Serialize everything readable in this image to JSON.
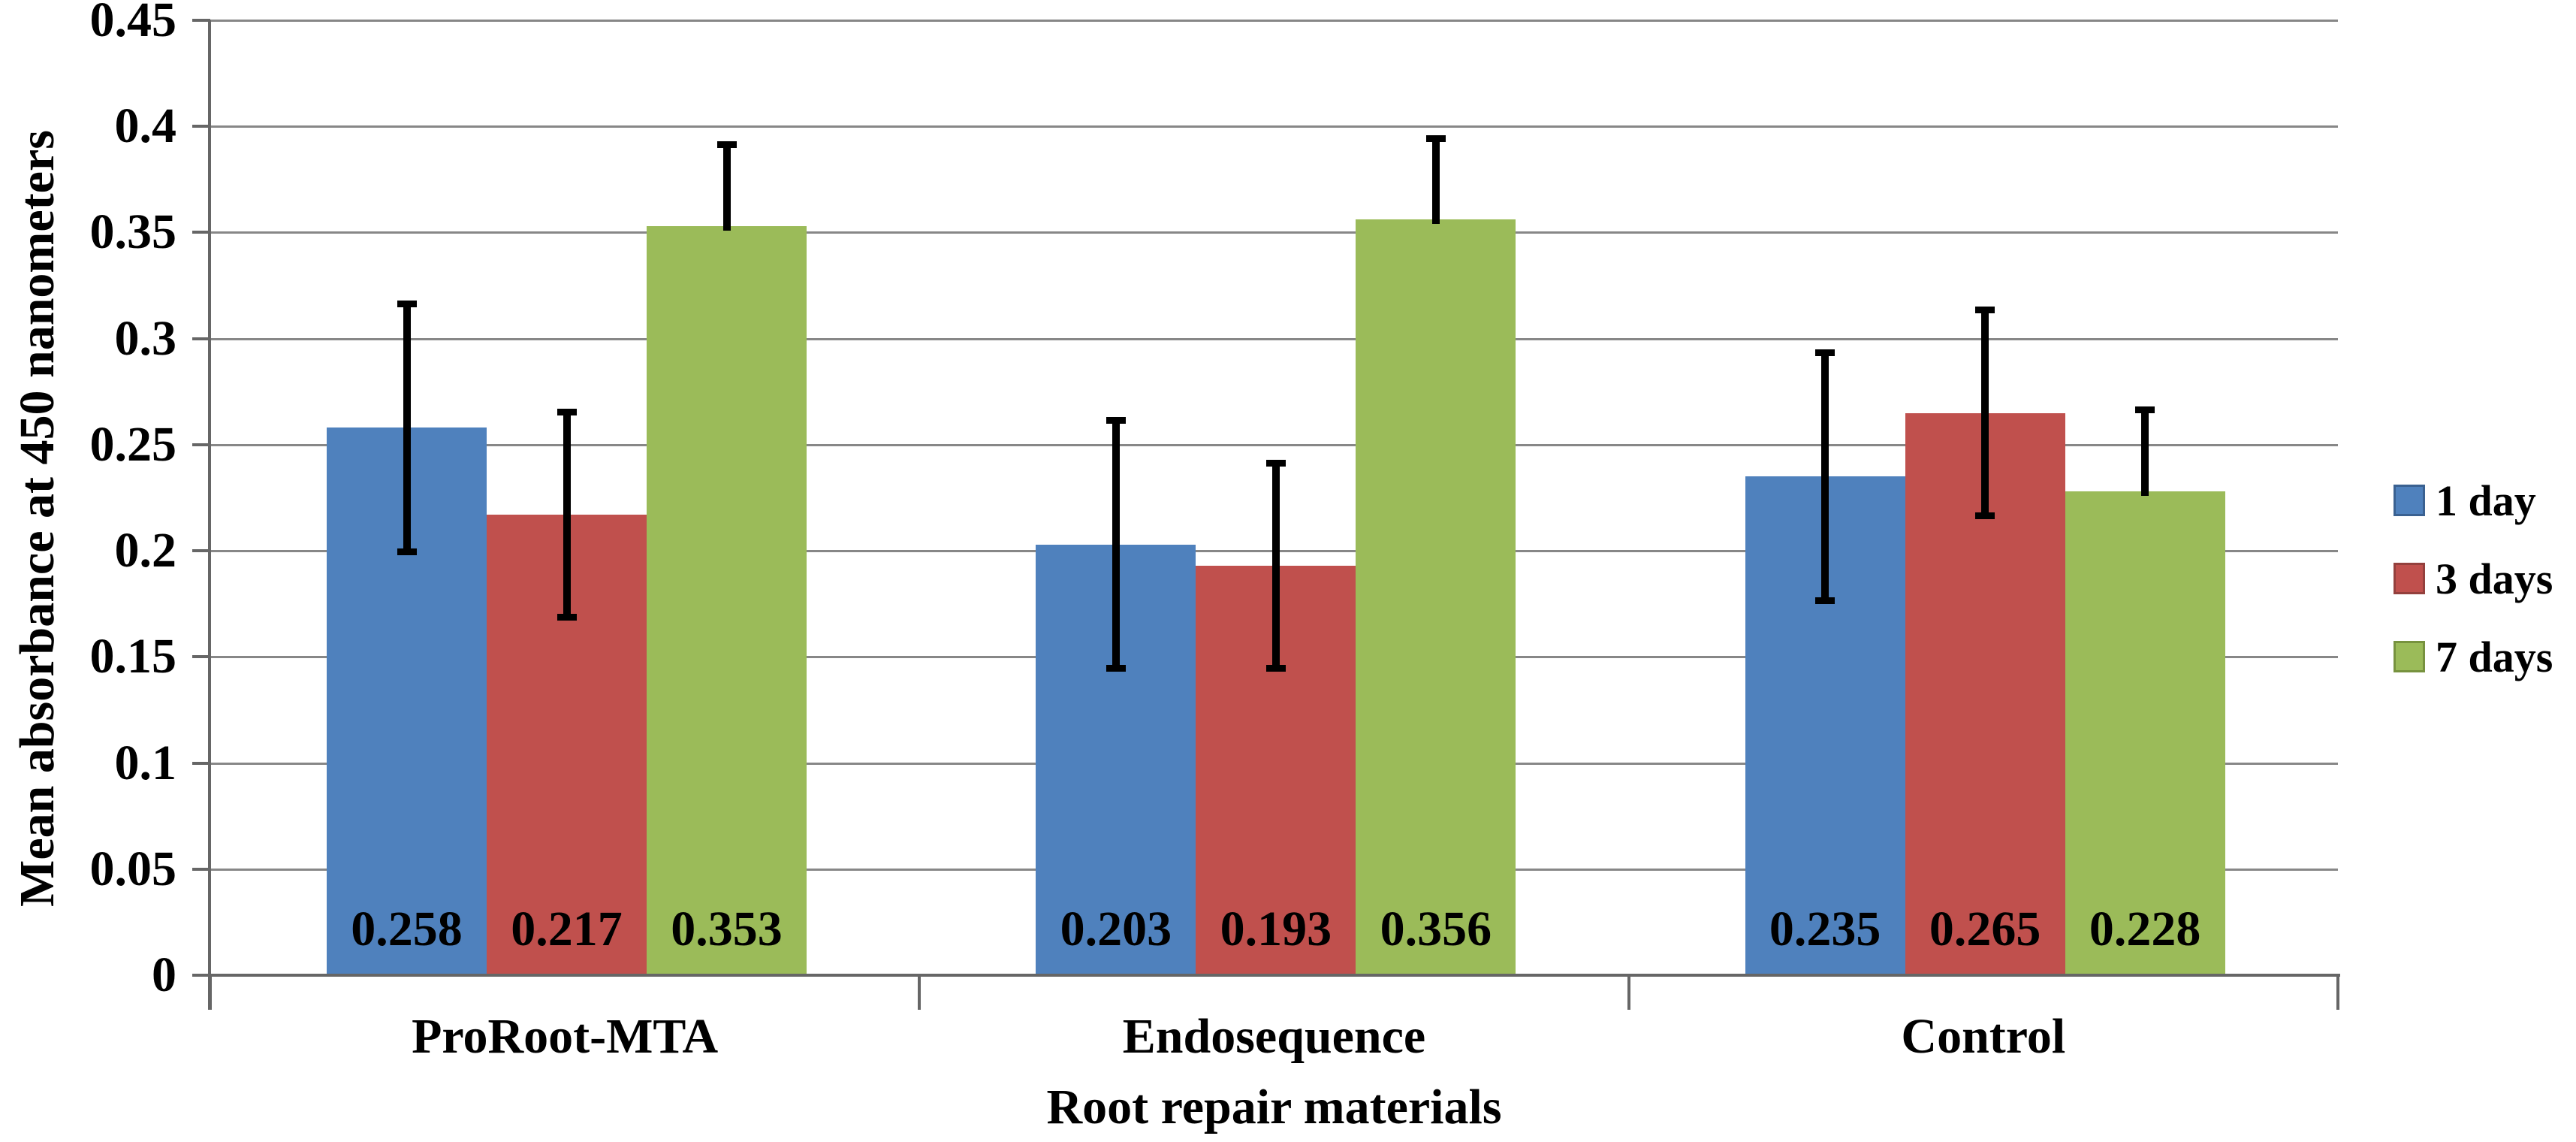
{
  "figure": {
    "background": "#ffffff"
  },
  "chart_data": {
    "type": "bar",
    "title": "",
    "ylabel": "Mean absorbance at 450 nanometers",
    "xlabel": "Root repair materials",
    "categories": [
      "ProRoot-MTA",
      "Endosequence",
      "Control"
    ],
    "series": [
      {
        "name": "1 day",
        "color": "#4F81BD",
        "border_color": "#3A6191",
        "values": [
          0.258,
          0.203,
          0.235
        ],
        "value_labels": [
          "0.258",
          "0.203",
          "0.235"
        ],
        "error_plus": 0.06,
        "error_minus": 0.06
      },
      {
        "name": "3 days",
        "color": "#C0504D",
        "border_color": "#94403D",
        "values": [
          0.217,
          0.193,
          0.265
        ],
        "value_labels": [
          "0.217",
          "0.193",
          "0.265"
        ],
        "error_plus": 0.05,
        "error_minus": 0.05
      },
      {
        "name": "7 days",
        "color": "#9BBB59",
        "border_color": "#77923F",
        "values": [
          0.353,
          0.356,
          0.228
        ],
        "value_labels": [
          "0.353",
          "0.356",
          "0.228"
        ],
        "error_plus": 0.04,
        "error_minus": 0
      }
    ],
    "y_tick_labels": [
      "0",
      "0.05",
      "0.1",
      "0.15",
      "0.2",
      "0.25",
      "0.3",
      "0.35",
      "0.4",
      "0.45"
    ],
    "ylim": [
      0,
      0.45
    ],
    "grid": true,
    "legend_position": "right",
    "error_bar_color": "#000000",
    "gridline_color": "#878787",
    "axis_color": "#666666",
    "label_color": "#000000"
  }
}
